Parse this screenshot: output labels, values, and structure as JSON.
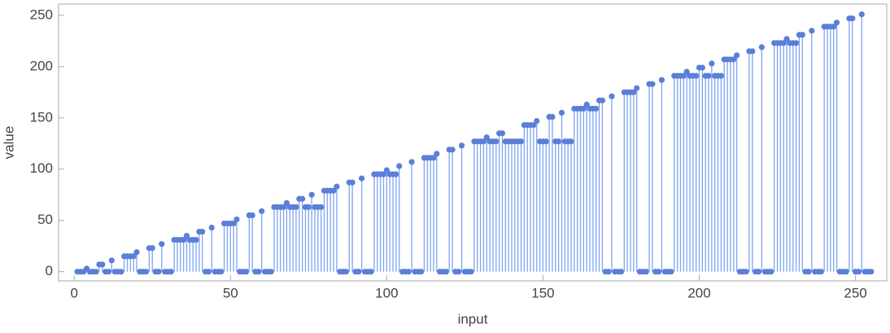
{
  "chart_data": {
    "type": "stem",
    "x_label": "input",
    "y_label": "value",
    "x": [
      1,
      2,
      3,
      4,
      5,
      6,
      7,
      8,
      9,
      10,
      11,
      12,
      13,
      14,
      15,
      16,
      17,
      18,
      19,
      20,
      21,
      22,
      23,
      24,
      25,
      26,
      27,
      28,
      29,
      30,
      31,
      32,
      33,
      34,
      35,
      36,
      37,
      38,
      39,
      40,
      41,
      42,
      43,
      44,
      45,
      46,
      47,
      48,
      49,
      50,
      51,
      52,
      53,
      54,
      55,
      56,
      57,
      58,
      59,
      60,
      61,
      62,
      63,
      64,
      65,
      66,
      67,
      68,
      69,
      70,
      71,
      72,
      73,
      74,
      75,
      76,
      77,
      78,
      79,
      80,
      81,
      82,
      83,
      84,
      85,
      86,
      87,
      88,
      89,
      90,
      91,
      92,
      93,
      94,
      95,
      96,
      97,
      98,
      99,
      100,
      101,
      102,
      103,
      104,
      105,
      106,
      107,
      108,
      109,
      110,
      111,
      112,
      113,
      114,
      115,
      116,
      117,
      118,
      119,
      120,
      121,
      122,
      123,
      124,
      125,
      126,
      127,
      128,
      129,
      130,
      131,
      132,
      133,
      134,
      135,
      136,
      137,
      138,
      139,
      140,
      141,
      142,
      143,
      144,
      145,
      146,
      147,
      148,
      149,
      150,
      151,
      152,
      153,
      154,
      155,
      156,
      157,
      158,
      159,
      160,
      161,
      162,
      163,
      164,
      165,
      166,
      167,
      168,
      169,
      170,
      171,
      172,
      173,
      174,
      175,
      176,
      177,
      178,
      179,
      180,
      181,
      182,
      183,
      184,
      185,
      186,
      187,
      188,
      189,
      190,
      191,
      192,
      193,
      194,
      195,
      196,
      197,
      198,
      199,
      200,
      201,
      202,
      203,
      204,
      205,
      206,
      207,
      208,
      209,
      210,
      211,
      212,
      213,
      214,
      215,
      216,
      217,
      218,
      219,
      220,
      221,
      222,
      223,
      224,
      225,
      226,
      227,
      228,
      229,
      230,
      231,
      232,
      233,
      234,
      235,
      236,
      237,
      238,
      239,
      240,
      241,
      242,
      243,
      244,
      245,
      246,
      247,
      248,
      249,
      250,
      251,
      252,
      253,
      254,
      255
    ],
    "values": [
      0,
      0,
      0,
      3,
      0,
      0,
      0,
      7,
      7,
      0,
      0,
      11,
      0,
      0,
      0,
      15,
      15,
      15,
      15,
      19,
      0,
      0,
      0,
      23,
      23,
      0,
      0,
      27,
      0,
      0,
      0,
      31,
      31,
      31,
      31,
      35,
      31,
      31,
      31,
      39,
      39,
      0,
      0,
      43,
      0,
      0,
      0,
      47,
      47,
      47,
      47,
      51,
      0,
      0,
      0,
      55,
      55,
      0,
      0,
      59,
      0,
      0,
      0,
      63,
      63,
      63,
      63,
      67,
      63,
      63,
      63,
      71,
      71,
      63,
      63,
      75,
      63,
      63,
      63,
      79,
      79,
      79,
      79,
      83,
      0,
      0,
      0,
      87,
      87,
      0,
      0,
      91,
      0,
      0,
      0,
      95,
      95,
      95,
      95,
      99,
      95,
      95,
      95,
      103,
      0,
      0,
      0,
      107,
      0,
      0,
      0,
      111,
      111,
      111,
      111,
      115,
      0,
      0,
      0,
      119,
      119,
      0,
      0,
      123,
      0,
      0,
      0,
      127,
      127,
      127,
      127,
      131,
      127,
      127,
      127,
      135,
      135,
      127,
      127,
      127,
      127,
      127,
      127,
      143,
      143,
      143,
      143,
      147,
      127,
      127,
      127,
      151,
      151,
      127,
      127,
      155,
      127,
      127,
      127,
      159,
      159,
      159,
      159,
      163,
      159,
      159,
      159,
      167,
      167,
      0,
      0,
      171,
      0,
      0,
      0,
      175,
      175,
      175,
      175,
      179,
      0,
      0,
      0,
      183,
      183,
      0,
      0,
      187,
      0,
      0,
      0,
      191,
      191,
      191,
      191,
      195,
      191,
      191,
      191,
      199,
      199,
      191,
      191,
      203,
      191,
      191,
      191,
      207,
      207,
      207,
      207,
      211,
      0,
      0,
      0,
      215,
      215,
      0,
      0,
      219,
      0,
      0,
      0,
      223,
      223,
      223,
      223,
      227,
      223,
      223,
      223,
      231,
      231,
      0,
      0,
      235,
      0,
      0,
      0,
      239,
      239,
      239,
      239,
      243,
      0,
      0,
      0,
      247,
      247,
      0,
      0,
      251,
      0,
      0,
      0
    ],
    "color": "#5b7fd6",
    "stem_color": "#7ea4f2",
    "xlim": [
      -5,
      260
    ],
    "ylim": [
      -9,
      261
    ],
    "xticks": [
      0,
      50,
      100,
      150,
      200,
      250
    ],
    "yticks": [
      0,
      50,
      100,
      150,
      200,
      250
    ]
  }
}
